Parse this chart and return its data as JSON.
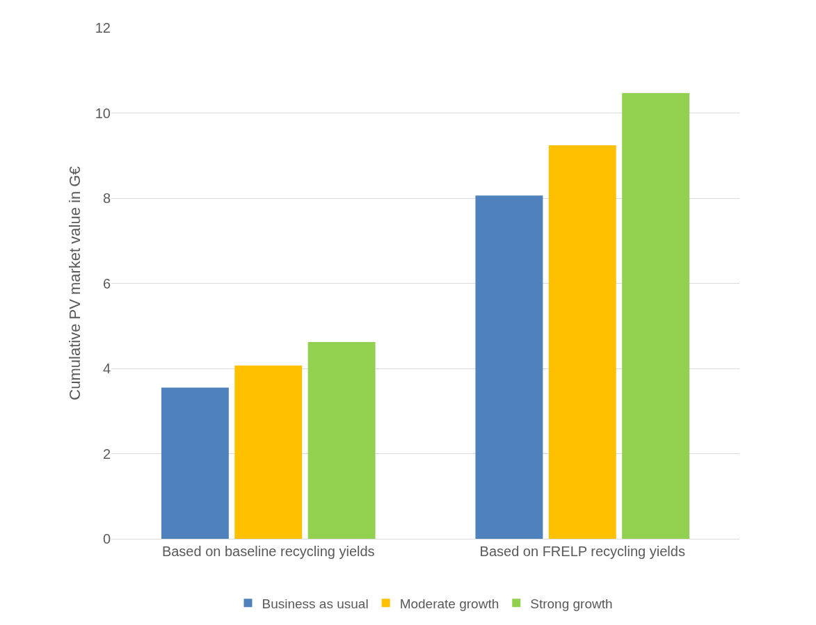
{
  "chart_data": {
    "type": "bar",
    "ylabel": "Cumulative PV market value in G€",
    "categories": [
      "Based on baseline recycling yields",
      "Based on FRELP recycling yields"
    ],
    "series": [
      {
        "name": "Business as usual",
        "color": "#4f81bd",
        "values": [
          3.55,
          8.06
        ]
      },
      {
        "name": "Moderate growth",
        "color": "#ffc000",
        "values": [
          4.07,
          9.24
        ]
      },
      {
        "name": "Strong growth",
        "color": "#92d050",
        "values": [
          4.62,
          10.47
        ]
      }
    ],
    "ylim": [
      0,
      12
    ],
    "yticks": [
      0,
      2,
      4,
      6,
      8,
      10,
      12
    ],
    "grid": "y",
    "legend": "bottom"
  }
}
